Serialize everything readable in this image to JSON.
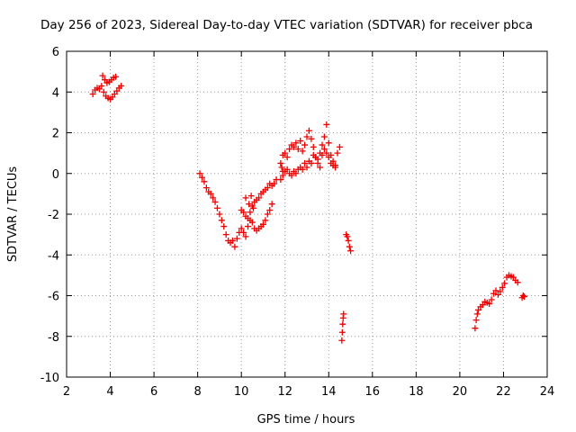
{
  "chart_data": {
    "type": "scatter",
    "title": "Day 256 of 2023, Sidereal Day-to-day VTEC variation (SDTVAR) for receiver pbca",
    "xlabel": "GPS time / hours",
    "ylabel": "SDTVAR / TECUs",
    "xlim": [
      2,
      24
    ],
    "ylim": [
      -10,
      6
    ],
    "xticks": [
      "2",
      "4",
      "6",
      "8",
      "10",
      "12",
      "14",
      "16",
      "18",
      "20",
      "22",
      "24"
    ],
    "yticks": [
      "-10",
      "-8",
      "-6",
      "-4",
      "-2",
      "0",
      "2",
      "4",
      "6"
    ],
    "grid": true,
    "marker": "+",
    "colors": {
      "series": "#ee0000",
      "grid": "#999999",
      "axes": "#000000"
    },
    "series": [
      {
        "name": "SDTVAR",
        "points": [
          [
            3.2,
            3.9
          ],
          [
            3.3,
            4.1
          ],
          [
            3.4,
            4.2
          ],
          [
            3.5,
            4.15
          ],
          [
            3.6,
            4.3
          ],
          [
            3.7,
            4.0
          ],
          [
            3.8,
            3.8
          ],
          [
            3.9,
            3.7
          ],
          [
            4.0,
            3.65
          ],
          [
            4.1,
            3.75
          ],
          [
            4.2,
            3.9
          ],
          [
            4.3,
            4.05
          ],
          [
            4.4,
            4.2
          ],
          [
            4.5,
            4.3
          ],
          [
            3.65,
            4.8
          ],
          [
            3.75,
            4.6
          ],
          [
            3.85,
            4.45
          ],
          [
            3.95,
            4.5
          ],
          [
            4.05,
            4.6
          ],
          [
            4.15,
            4.7
          ],
          [
            4.25,
            4.75
          ],
          [
            8.1,
            0.0
          ],
          [
            8.2,
            -0.2
          ],
          [
            8.3,
            -0.4
          ],
          [
            8.4,
            -0.7
          ],
          [
            8.5,
            -0.9
          ],
          [
            8.6,
            -1.0
          ],
          [
            8.7,
            -1.2
          ],
          [
            8.8,
            -1.4
          ],
          [
            8.9,
            -1.7
          ],
          [
            9.0,
            -2.0
          ],
          [
            9.1,
            -2.3
          ],
          [
            9.2,
            -2.6
          ],
          [
            9.3,
            -3.0
          ],
          [
            9.4,
            -3.3
          ],
          [
            9.5,
            -3.4
          ],
          [
            9.6,
            -3.3
          ],
          [
            9.7,
            -3.6
          ],
          [
            9.8,
            -3.2
          ],
          [
            9.9,
            -2.9
          ],
          [
            10.0,
            -2.7
          ],
          [
            10.1,
            -2.9
          ],
          [
            10.2,
            -3.1
          ],
          [
            10.3,
            -2.6
          ],
          [
            10.4,
            -2.3
          ],
          [
            10.5,
            -2.4
          ],
          [
            10.6,
            -2.7
          ],
          [
            10.7,
            -2.8
          ],
          [
            10.8,
            -2.7
          ],
          [
            10.9,
            -2.6
          ],
          [
            11.0,
            -2.5
          ],
          [
            11.1,
            -2.3
          ],
          [
            11.2,
            -2.0
          ],
          [
            11.3,
            -1.8
          ],
          [
            11.4,
            -1.5
          ],
          [
            10.0,
            -1.8
          ],
          [
            10.1,
            -1.9
          ],
          [
            10.2,
            -2.1
          ],
          [
            10.3,
            -2.2
          ],
          [
            10.4,
            -1.9
          ],
          [
            10.5,
            -1.6
          ],
          [
            10.6,
            -1.4
          ],
          [
            10.7,
            -1.3
          ],
          [
            10.8,
            -1.2
          ],
          [
            10.9,
            -1.0
          ],
          [
            11.0,
            -0.9
          ],
          [
            11.1,
            -0.8
          ],
          [
            11.2,
            -0.7
          ],
          [
            11.3,
            -0.5
          ],
          [
            11.4,
            -0.6
          ],
          [
            11.5,
            -0.5
          ],
          [
            11.6,
            -0.3
          ],
          [
            10.2,
            -1.2
          ],
          [
            10.35,
            -1.5
          ],
          [
            10.45,
            -1.1
          ],
          [
            10.55,
            -1.7
          ],
          [
            11.8,
            -0.3
          ],
          [
            11.9,
            -0.1
          ],
          [
            12.0,
            0.1
          ],
          [
            12.1,
            0.2
          ],
          [
            12.2,
            0.0
          ],
          [
            12.3,
            -0.1
          ],
          [
            12.4,
            0.1
          ],
          [
            12.5,
            0.0
          ],
          [
            12.6,
            0.2
          ],
          [
            12.7,
            0.3
          ],
          [
            12.8,
            0.2
          ],
          [
            12.9,
            0.5
          ],
          [
            13.0,
            0.3
          ],
          [
            13.1,
            0.6
          ],
          [
            13.2,
            0.5
          ],
          [
            13.3,
            0.9
          ],
          [
            13.4,
            0.8
          ],
          [
            13.5,
            0.7
          ],
          [
            13.6,
            1.0
          ],
          [
            13.7,
            0.9
          ],
          [
            13.8,
            1.2
          ],
          [
            13.9,
            1.0
          ],
          [
            14.0,
            0.8
          ],
          [
            14.1,
            0.5
          ],
          [
            14.2,
            0.4
          ],
          [
            14.3,
            0.4
          ],
          [
            11.9,
            0.9
          ],
          [
            12.0,
            1.0
          ],
          [
            12.1,
            0.8
          ],
          [
            12.2,
            1.2
          ],
          [
            12.3,
            1.4
          ],
          [
            12.4,
            1.3
          ],
          [
            12.5,
            1.5
          ],
          [
            12.6,
            1.2
          ],
          [
            12.7,
            1.6
          ],
          [
            12.8,
            1.1
          ],
          [
            12.9,
            1.4
          ],
          [
            13.0,
            1.8
          ],
          [
            13.1,
            2.1
          ],
          [
            13.2,
            1.7
          ],
          [
            13.3,
            1.3
          ],
          [
            13.4,
            0.8
          ],
          [
            13.5,
            0.5
          ],
          [
            13.6,
            0.3
          ],
          [
            13.7,
            1.4
          ],
          [
            13.8,
            1.8
          ],
          [
            13.9,
            2.4
          ],
          [
            14.0,
            1.5
          ],
          [
            14.1,
            0.9
          ],
          [
            14.2,
            0.6
          ],
          [
            14.3,
            0.3
          ],
          [
            14.4,
            1.0
          ],
          [
            14.5,
            1.3
          ],
          [
            11.8,
            0.5
          ],
          [
            11.85,
            0.3
          ],
          [
            11.9,
            0.1
          ],
          [
            14.6,
            -8.2
          ],
          [
            14.62,
            -7.8
          ],
          [
            14.64,
            -7.4
          ],
          [
            14.66,
            -7.1
          ],
          [
            14.68,
            -6.9
          ],
          [
            14.8,
            -3.0
          ],
          [
            14.85,
            -3.1
          ],
          [
            14.9,
            -3.3
          ],
          [
            14.95,
            -3.6
          ],
          [
            15.0,
            -3.8
          ],
          [
            20.7,
            -7.6
          ],
          [
            20.75,
            -7.2
          ],
          [
            20.8,
            -6.9
          ],
          [
            20.85,
            -6.7
          ],
          [
            20.95,
            -6.55
          ],
          [
            21.05,
            -6.45
          ],
          [
            21.15,
            -6.3
          ],
          [
            21.25,
            -6.35
          ],
          [
            21.35,
            -6.4
          ],
          [
            21.45,
            -6.2
          ],
          [
            21.55,
            -5.9
          ],
          [
            21.65,
            -5.75
          ],
          [
            21.75,
            -5.95
          ],
          [
            21.85,
            -5.8
          ],
          [
            21.95,
            -5.6
          ],
          [
            22.05,
            -5.4
          ],
          [
            22.15,
            -5.1
          ],
          [
            22.25,
            -5.0
          ],
          [
            22.35,
            -5.05
          ],
          [
            22.45,
            -5.1
          ],
          [
            22.55,
            -5.25
          ],
          [
            22.65,
            -5.35
          ],
          [
            22.85,
            -6.1
          ],
          [
            22.9,
            -6.0
          ],
          [
            22.95,
            -6.05
          ]
        ]
      }
    ]
  }
}
